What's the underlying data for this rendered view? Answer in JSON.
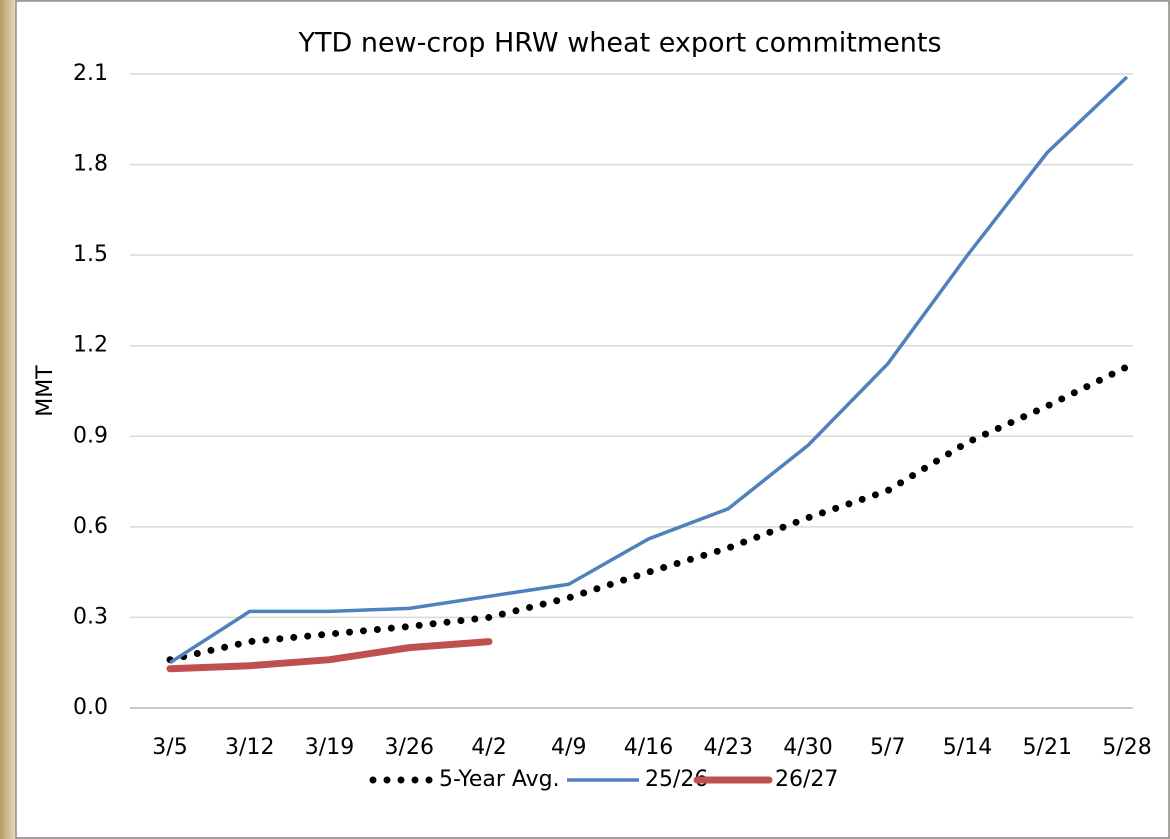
{
  "chart_data": {
    "type": "line",
    "title": "YTD new-crop HRW wheat export commitments",
    "y_label": "MMT",
    "categories": [
      "3/5",
      "3/12",
      "3/19",
      "3/26",
      "4/2",
      "4/9",
      "4/16",
      "4/23",
      "4/30",
      "5/7",
      "5/14",
      "5/21",
      "5/28"
    ],
    "series": [
      {
        "name": "5-Year Avg.",
        "color": "#000000",
        "style": "dotted",
        "values": [
          0.16,
          0.22,
          0.245,
          0.27,
          0.3,
          0.365,
          0.45,
          0.53,
          0.63,
          0.72,
          0.88,
          1.0,
          1.13
        ]
      },
      {
        "name": "25/26",
        "color": "#4f81bd",
        "style": "solid",
        "values": [
          0.15,
          0.32,
          0.32,
          0.33,
          0.37,
          0.41,
          0.56,
          0.66,
          0.87,
          1.14,
          1.5,
          1.84,
          2.09
        ]
      },
      {
        "name": "26/27",
        "color": "#c0504d",
        "style": "thick",
        "values": [
          0.13,
          0.14,
          0.16,
          0.2,
          0.22,
          null,
          null,
          null,
          null,
          null,
          null,
          null,
          null
        ]
      }
    ],
    "ylim": [
      0,
      2.1
    ],
    "yticks": [
      {
        "value": 0,
        "label": "0.0"
      },
      0.3,
      0.6,
      0.9,
      1.2,
      1.5,
      1.8,
      2.1
    ],
    "grid": true,
    "legend": "bottom"
  }
}
